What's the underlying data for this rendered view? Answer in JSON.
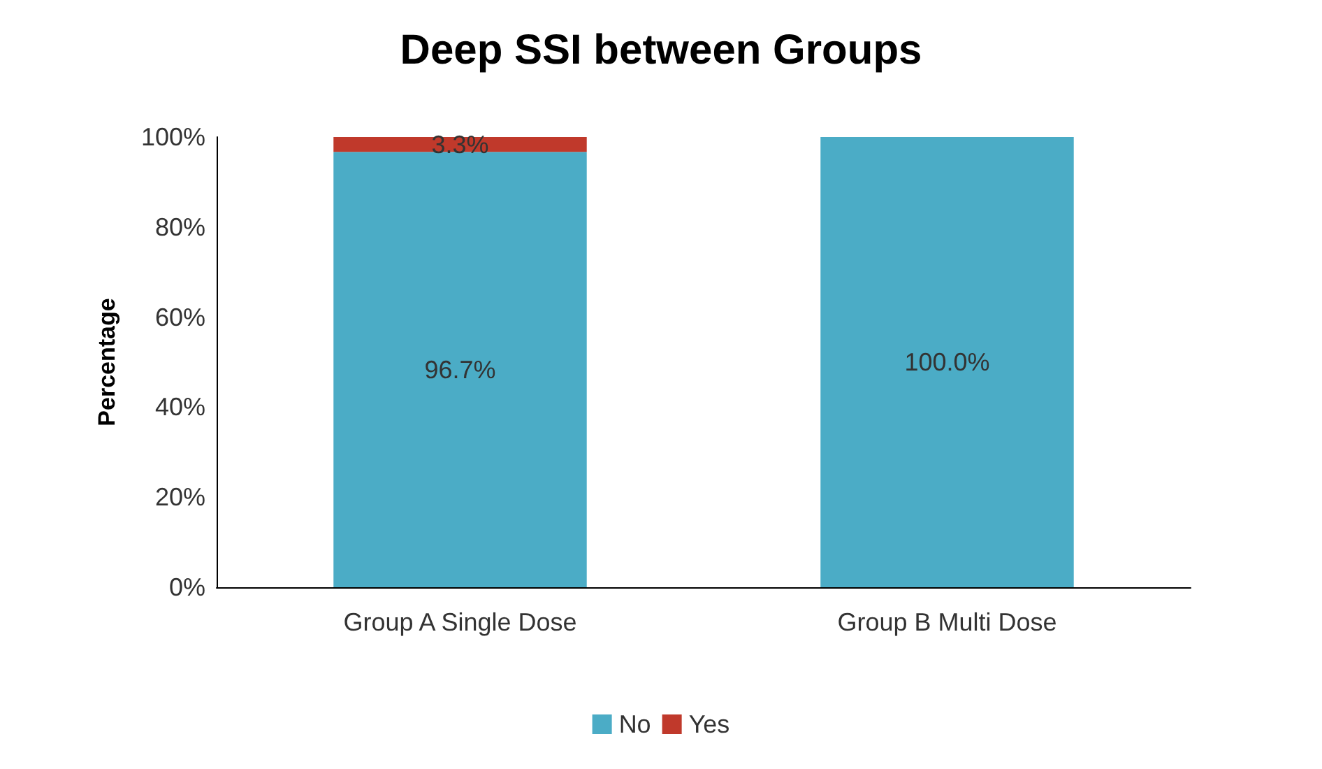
{
  "chart_data": {
    "type": "bar",
    "title": "Deep SSI between Groups",
    "ylabel": "Percentage",
    "categories": [
      "Group A Single Dose",
      "Group B Multi Dose"
    ],
    "stacked": true,
    "series": [
      {
        "name": "No",
        "color": "#4bacc6",
        "values": [
          96.7,
          100
        ],
        "value_labels": [
          "96.7%",
          "100.0%"
        ]
      },
      {
        "name": "Yes",
        "color": "#c0392b",
        "values": [
          3.3,
          0
        ],
        "value_labels": [
          "3.3%",
          null
        ]
      }
    ],
    "ylim": [
      0,
      100
    ],
    "yticks": [
      {
        "value": 0,
        "label": "0%"
      },
      {
        "value": 20,
        "label": "20%"
      },
      {
        "value": 40,
        "label": "40%"
      },
      {
        "value": 60,
        "label": "60%"
      },
      {
        "value": 80,
        "label": "80%"
      },
      {
        "value": 100,
        "label": "100%"
      }
    ],
    "grid": false,
    "legend": "bottom"
  }
}
